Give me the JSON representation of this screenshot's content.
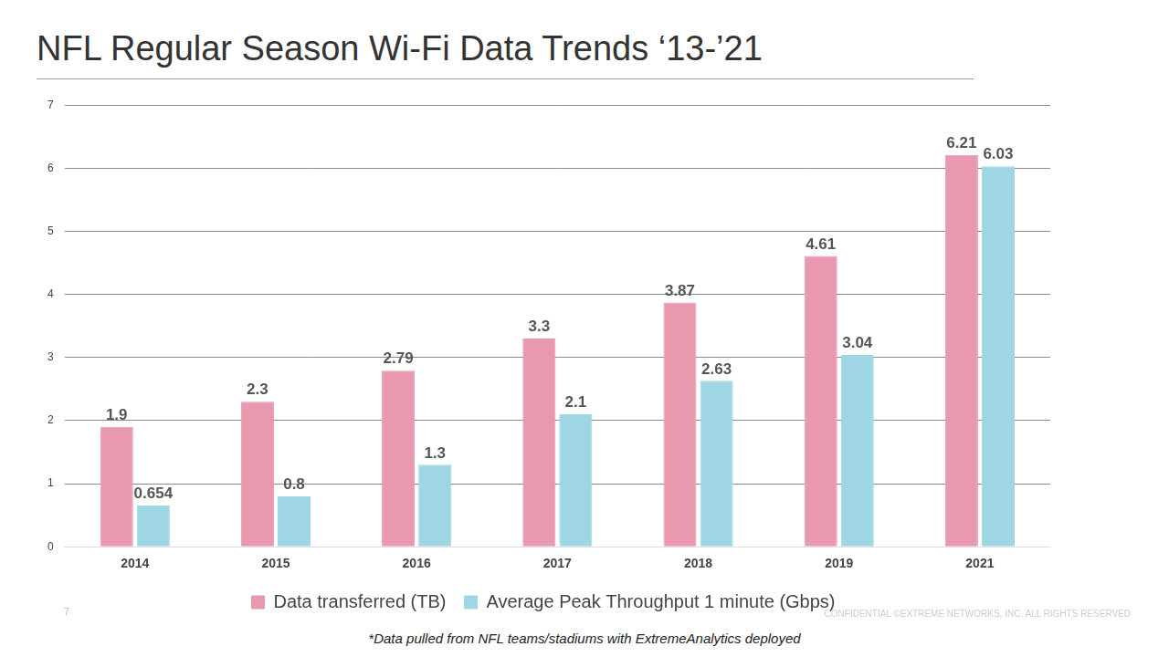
{
  "chart_data": {
    "type": "bar",
    "title": "NFL Regular Season Wi-Fi Data Trends ‘13-’21",
    "annotations": [
      "*Data pulled from NFL teams/stadiums with ExtremeAnalytics deployed",
      "7",
      "CONFIDENTIAL ©EXTREME NETWORKS, INC. ALL RIGHTS RESERVED"
    ],
    "categories": [
      "2014",
      "2015",
      "2016",
      "2017",
      "2018",
      "2019",
      "2021"
    ],
    "series": [
      {
        "name": "Data transferred (TB)",
        "color": "#e899ae",
        "values": [
          1.9,
          2.3,
          2.79,
          3.3,
          3.87,
          4.61,
          6.21
        ]
      },
      {
        "name": "Average Peak Throughput 1 minute (Gbps)",
        "color": "#9fd6e4",
        "values": [
          0.654,
          0.8,
          1.3,
          2.1,
          2.63,
          3.04,
          6.03
        ]
      }
    ],
    "ylim": [
      0,
      7
    ],
    "yticks": [
      0,
      1,
      2,
      3,
      4,
      5,
      6,
      7
    ],
    "grid": true,
    "legend": "bottom",
    "data_labels": true
  }
}
